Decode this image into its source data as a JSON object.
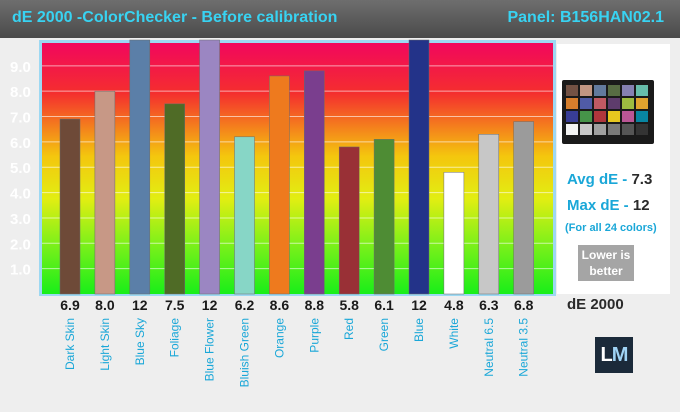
{
  "header": {
    "title": "dE 2000 -ColorChecker - Before calibration",
    "panel": "Panel: B156HAN02.1"
  },
  "chart_data": {
    "type": "bar",
    "title": "dE 2000 -ColorChecker - Before calibration",
    "xlabel": "",
    "ylabel": "",
    "ylim": [
      0,
      9.9
    ],
    "yticks": [
      "1.0",
      "2.0",
      "3.0",
      "4.0",
      "5.0",
      "6.0",
      "7.0",
      "8.0",
      "9.0"
    ],
    "categories": [
      "Dark Skin",
      "Light Skin",
      "Blue Sky",
      "Foliage",
      "Blue Flower",
      "Bluish Green",
      "Orange",
      "Purple",
      "Red",
      "Green",
      "Blue",
      "White",
      "Neutral 6.5",
      "Neutral 3.5"
    ],
    "values": [
      6.9,
      8.0,
      12,
      7.5,
      12,
      6.2,
      8.6,
      8.8,
      5.8,
      6.1,
      12,
      4.8,
      6.3,
      6.8
    ],
    "value_labels": [
      "6.9",
      "8.0",
      "12",
      "7.5",
      "12",
      "6.2",
      "8.6",
      "8.8",
      "5.8",
      "6.1",
      "12",
      "4.8",
      "6.3",
      "6.8"
    ],
    "bar_colors": [
      "#6e4a38",
      "#c79886",
      "#5b7fa8",
      "#4f6b26",
      "#9b86c2",
      "#87d6c6",
      "#ee7a1e",
      "#7a3e8e",
      "#993036",
      "#4e8c34",
      "#233389",
      "#ffffff",
      "#c7c7c7",
      "#9b9b9b"
    ],
    "grid": true,
    "legend": "none"
  },
  "side_panel": {
    "avg_label": "Avg dE - ",
    "avg_value": "7.3",
    "max_label": "Max dE - ",
    "max_value": "12",
    "note": "(For all 24 colors)",
    "badge_line1": "Lower is",
    "badge_line2": "better",
    "unit": "dE 2000",
    "logo": "LM",
    "checker_colors": [
      "#735244",
      "#c29682",
      "#627a9d",
      "#576c43",
      "#8580b1",
      "#67bdaa",
      "#d67e2c",
      "#505ba6",
      "#c15a63",
      "#5e3c6c",
      "#9dbc40",
      "#e0a32e",
      "#383d96",
      "#469449",
      "#af363c",
      "#e7c71f",
      "#bb5695",
      "#0885a1",
      "#f3f3f2",
      "#c8c8c8",
      "#a0a0a0",
      "#7a7a79",
      "#555555",
      "#343434"
    ]
  }
}
